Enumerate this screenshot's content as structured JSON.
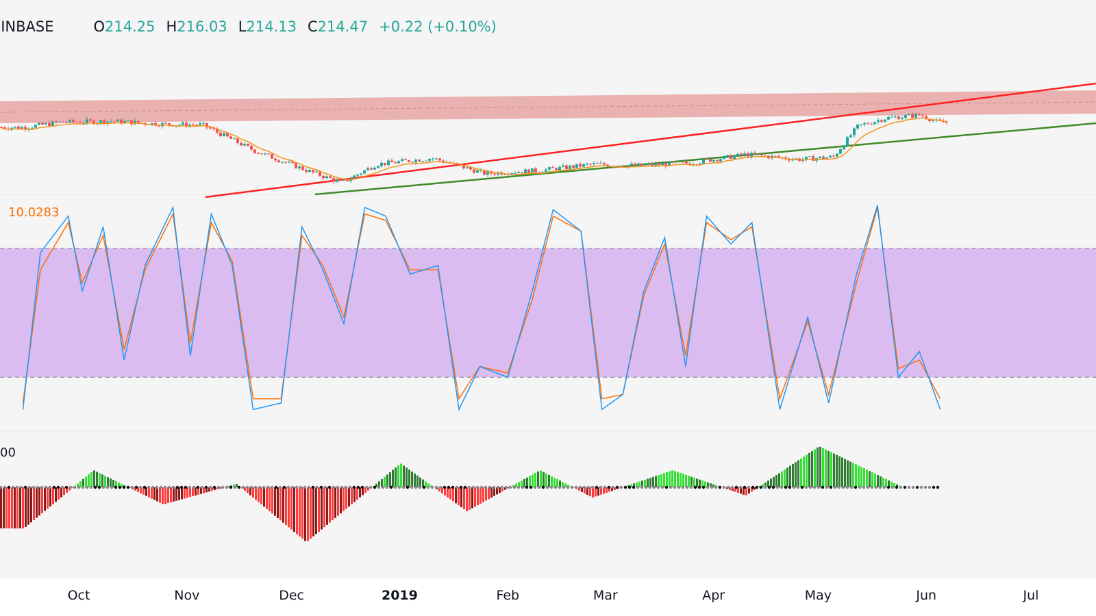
{
  "colors": {
    "up": "#26a69a",
    "down": "#ef5350",
    "stoch_k": "#2196f3",
    "stoch_d": "#ff6d00",
    "band": "#d9b8f0",
    "resistance_zone": "#e8a4a4",
    "red_line": "#ff1f1f",
    "green_line": "#3f8a2a"
  },
  "legend": {
    "symbol": "COINBASE",
    "o_label": "O",
    "o_value": "214.25",
    "h_label": "H",
    "h_value": "216.03",
    "l_label": "L",
    "l_value": "214.13",
    "c_label": "C",
    "c_value": "214.47",
    "change": "+0.22 (+0.10%)"
  },
  "stoch_label": "10.0283",
  "histogram_label": "00",
  "chart_data": [
    {
      "type": "line",
      "subtype": "candlestick",
      "x_axis_ticks": [
        "Oct",
        "Nov",
        "Dec",
        "2019",
        "Feb",
        "Mar",
        "Apr",
        "May",
        "Jun",
        "Jul"
      ],
      "x": [
        "2018-09-15",
        "2018-09-25",
        "2018-10-10",
        "2018-10-25",
        "2018-11-05",
        "2018-11-20",
        "2018-12-05",
        "2018-12-15",
        "2018-12-25",
        "2019-01-10",
        "2019-01-25",
        "2019-02-10",
        "2019-02-25",
        "2019-03-10",
        "2019-03-25",
        "2019-04-10",
        "2019-04-25",
        "2019-05-05",
        "2019-05-12",
        "2019-05-20",
        "2019-05-30",
        "2019-06-04"
      ],
      "series": [
        {
          "values": [
            220,
            228,
            230,
            225,
            224,
            182,
            150,
            130,
            160,
            170,
            145,
            150,
            160,
            158,
            162,
            176,
            168,
            172,
            222,
            235,
            240,
            228
          ]
        }
      ]
    },
    {
      "type": "line",
      "title": "",
      "ylim": [
        0,
        100
      ],
      "bands": [
        20,
        80
      ],
      "x": [
        "2018-09-15",
        "2018-09-20",
        "2018-09-28",
        "2018-10-02",
        "2018-10-08",
        "2018-10-14",
        "2018-10-20",
        "2018-10-28",
        "2018-11-02",
        "2018-11-08",
        "2018-11-14",
        "2018-11-20",
        "2018-11-28",
        "2018-12-04",
        "2018-12-10",
        "2018-12-16",
        "2018-12-22",
        "2018-12-28",
        "2019-01-04",
        "2019-01-12",
        "2019-01-18",
        "2019-01-24",
        "2019-02-01",
        "2019-02-08",
        "2019-02-14",
        "2019-02-22",
        "2019-02-28",
        "2019-03-06",
        "2019-03-12",
        "2019-03-18",
        "2019-03-24",
        "2019-03-30",
        "2019-04-06",
        "2019-04-12",
        "2019-04-20",
        "2019-04-28",
        "2019-05-04",
        "2019-05-12",
        "2019-05-18",
        "2019-05-24",
        "2019-05-30",
        "2019-06-05"
      ],
      "series": [
        {
          "values": [
            5,
            78,
            95,
            60,
            90,
            28,
            72,
            99,
            30,
            96,
            72,
            5,
            8,
            90,
            70,
            45,
            99,
            95,
            68,
            72,
            5,
            25,
            20,
            60,
            98,
            88,
            5,
            12,
            60,
            85,
            25,
            95,
            82,
            92,
            5,
            48,
            8,
            68,
            100,
            20,
            32,
            5
          ]
        },
        {
          "values": [
            8,
            70,
            92,
            64,
            86,
            33,
            70,
            96,
            36,
            92,
            74,
            10,
            10,
            86,
            72,
            48,
            96,
            93,
            70,
            70,
            10,
            25,
            22,
            56,
            95,
            88,
            10,
            12,
            58,
            82,
            30,
            92,
            84,
            90,
            10,
            46,
            12,
            64,
            99,
            24,
            28,
            10
          ]
        }
      ]
    },
    {
      "type": "bar",
      "subtype": "histogram",
      "x": [
        "2018-09-15",
        "2018-10-05",
        "2018-10-25",
        "2018-11-15",
        "2018-12-05",
        "2019-01-01",
        "2019-01-20",
        "2019-02-10",
        "2019-02-25",
        "2019-03-20",
        "2019-04-10",
        "2019-05-01",
        "2019-05-25",
        "2019-06-05"
      ],
      "series": [
        {
          "values": [
            -60,
            25,
            -25,
            5,
            -80,
            35,
            -35,
            25,
            -15,
            25,
            -12,
            60,
            0,
            0
          ]
        }
      ]
    }
  ]
}
